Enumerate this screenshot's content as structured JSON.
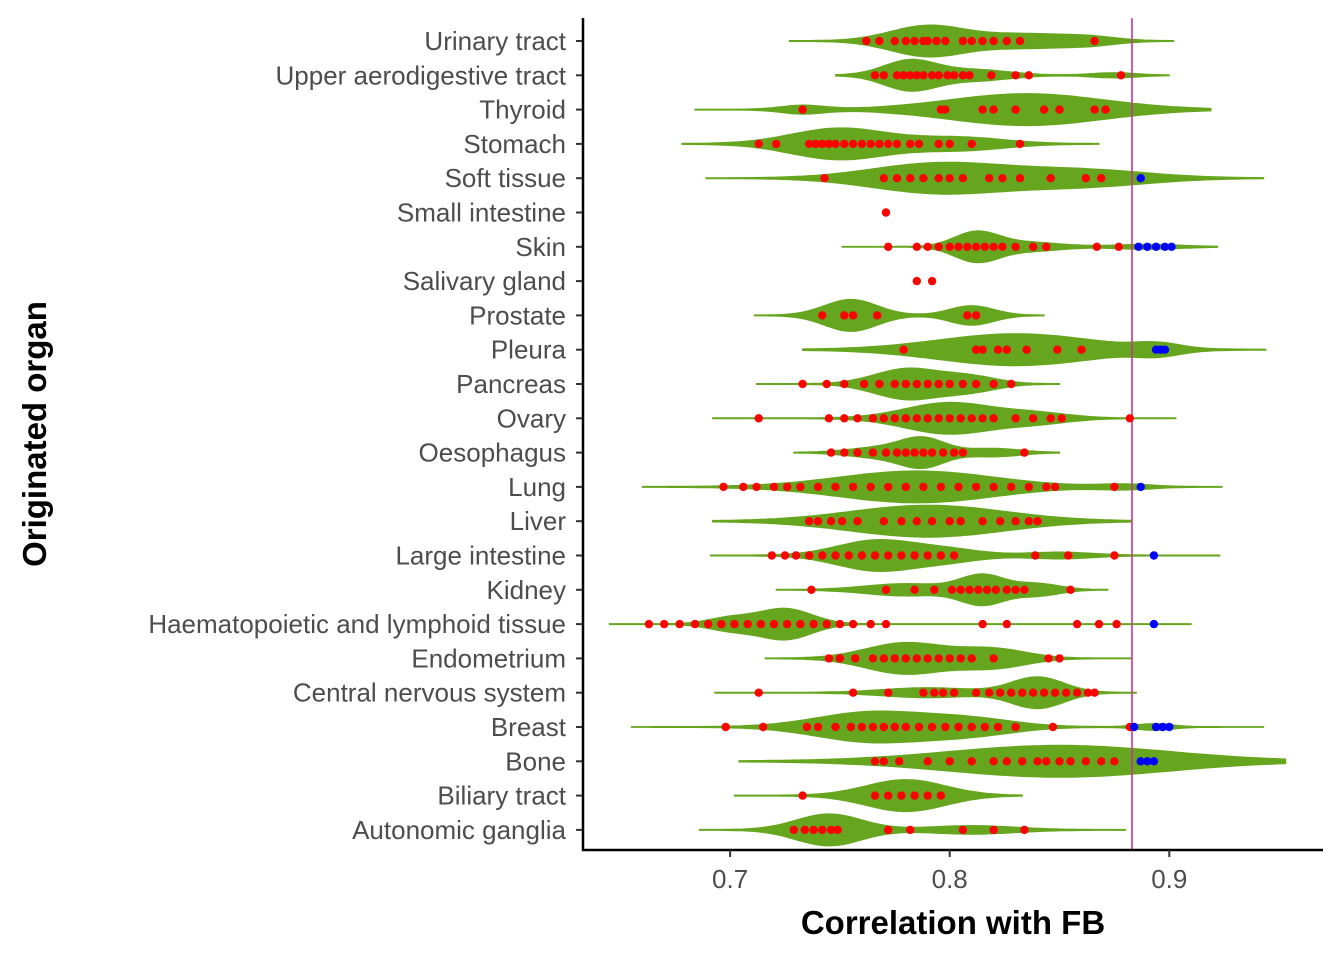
{
  "chart_data": {
    "type": "violin",
    "title": "",
    "xlabel": "Correlation with FB",
    "ylabel": "Originated organ",
    "xlim": [
      0.633,
      0.97
    ],
    "x_ticks": [
      0.7,
      0.8,
      0.9
    ],
    "x_tick_labels": [
      "0.7",
      "0.8",
      "0.9"
    ],
    "reference_line": {
      "x": 0.883,
      "color": "#c2398f"
    },
    "colors": {
      "violin": "#66a61e",
      "below_threshold_point": "#ff0000",
      "above_threshold_point": "#0000ff"
    },
    "grid": false,
    "legend": "none",
    "categories": [
      {
        "name": "Urinary tract",
        "range": [
          0.727,
          0.902
        ],
        "peaks": [
          [
            0.79,
            0.017,
            1.0
          ],
          [
            0.835,
            0.02,
            0.45
          ],
          [
            0.865,
            0.012,
            0.2
          ]
        ],
        "points": [
          0.762,
          0.768,
          0.775,
          0.78,
          0.784,
          0.788,
          0.79,
          0.794,
          0.798,
          0.806,
          0.81,
          0.815,
          0.82,
          0.826,
          0.832,
          0.866
        ],
        "blue_points": []
      },
      {
        "name": "Upper aerodigestive tract",
        "range": [
          0.748,
          0.9
        ],
        "peaks": [
          [
            0.782,
            0.012,
            1.0
          ],
          [
            0.812,
            0.015,
            0.35
          ],
          [
            0.875,
            0.01,
            0.15
          ]
        ],
        "points": [
          0.766,
          0.77,
          0.776,
          0.779,
          0.782,
          0.785,
          0.788,
          0.792,
          0.795,
          0.799,
          0.802,
          0.806,
          0.809,
          0.819,
          0.83,
          0.836,
          0.878
        ],
        "blue_points": []
      },
      {
        "name": "Thyroid",
        "range": [
          0.684,
          0.919
        ],
        "peaks": [
          [
            0.733,
            0.01,
            0.25
          ],
          [
            0.835,
            0.035,
            1.0
          ]
        ],
        "points": [
          0.733,
          0.796,
          0.798,
          0.815,
          0.82,
          0.83,
          0.843,
          0.85,
          0.866,
          0.871
        ],
        "blue_points": []
      },
      {
        "name": "Stomach",
        "range": [
          0.678,
          0.868
        ],
        "peaks": [
          [
            0.75,
            0.022,
            1.0
          ],
          [
            0.805,
            0.02,
            0.4
          ]
        ],
        "points": [
          0.713,
          0.721,
          0.736,
          0.739,
          0.742,
          0.745,
          0.748,
          0.752,
          0.756,
          0.76,
          0.764,
          0.768,
          0.772,
          0.776,
          0.782,
          0.786,
          0.795,
          0.8,
          0.81,
          0.832
        ],
        "blue_points": []
      },
      {
        "name": "Soft tissue",
        "range": [
          0.689,
          0.943
        ],
        "peaks": [
          [
            0.795,
            0.03,
            1.0
          ],
          [
            0.86,
            0.03,
            0.55
          ]
        ],
        "points": [
          0.743,
          0.77,
          0.776,
          0.782,
          0.788,
          0.795,
          0.8,
          0.806,
          0.818,
          0.824,
          0.832,
          0.846,
          0.862,
          0.869
        ],
        "blue_points": [
          0.887
        ]
      },
      {
        "name": "Small intestine",
        "range": [
          0.77,
          0.773
        ],
        "peaks": [],
        "points": [
          0.771
        ],
        "blue_points": []
      },
      {
        "name": "Skin",
        "range": [
          0.751,
          0.922
        ],
        "peaks": [
          [
            0.812,
            0.01,
            1.0
          ],
          [
            0.835,
            0.015,
            0.3
          ],
          [
            0.89,
            0.015,
            0.15
          ]
        ],
        "points": [
          0.772,
          0.785,
          0.79,
          0.795,
          0.8,
          0.804,
          0.808,
          0.812,
          0.816,
          0.82,
          0.824,
          0.83,
          0.838,
          0.844,
          0.867,
          0.877
        ],
        "blue_points": [
          0.886,
          0.89,
          0.894,
          0.898,
          0.901
        ]
      },
      {
        "name": "Salivary gland",
        "range": [
          0.784,
          0.793
        ],
        "peaks": [],
        "points": [
          0.785,
          0.792
        ],
        "blue_points": []
      },
      {
        "name": "Prostate",
        "range": [
          0.711,
          0.843
        ],
        "peaks": [
          [
            0.755,
            0.012,
            1.0
          ],
          [
            0.81,
            0.01,
            0.6
          ]
        ],
        "points": [
          0.742,
          0.752,
          0.756,
          0.767,
          0.808,
          0.812
        ],
        "blue_points": []
      },
      {
        "name": "Pleura",
        "range": [
          0.733,
          0.944
        ],
        "peaks": [
          [
            0.83,
            0.035,
            1.0
          ],
          [
            0.895,
            0.01,
            0.3
          ]
        ],
        "points": [
          0.779,
          0.812,
          0.815,
          0.822,
          0.826,
          0.835,
          0.849,
          0.86
        ],
        "blue_points": [
          0.894,
          0.896,
          0.898
        ]
      },
      {
        "name": "Pancreas",
        "range": [
          0.712,
          0.85
        ],
        "peaks": [
          [
            0.781,
            0.015,
            1.0
          ],
          [
            0.81,
            0.012,
            0.45
          ]
        ],
        "points": [
          0.733,
          0.744,
          0.752,
          0.761,
          0.768,
          0.775,
          0.78,
          0.785,
          0.79,
          0.795,
          0.8,
          0.806,
          0.812,
          0.82,
          0.828
        ],
        "blue_points": []
      },
      {
        "name": "Ovary",
        "range": [
          0.692,
          0.903
        ],
        "peaks": [
          [
            0.8,
            0.02,
            1.0
          ],
          [
            0.84,
            0.015,
            0.3
          ]
        ],
        "points": [
          0.713,
          0.745,
          0.752,
          0.758,
          0.765,
          0.77,
          0.775,
          0.78,
          0.785,
          0.79,
          0.795,
          0.8,
          0.805,
          0.81,
          0.815,
          0.82,
          0.83,
          0.838,
          0.846,
          0.851,
          0.882
        ],
        "blue_points": []
      },
      {
        "name": "Oesophagus",
        "range": [
          0.729,
          0.85
        ],
        "peaks": [
          [
            0.788,
            0.01,
            1.0
          ],
          [
            0.77,
            0.015,
            0.4
          ],
          [
            0.82,
            0.012,
            0.3
          ]
        ],
        "points": [
          0.746,
          0.752,
          0.758,
          0.765,
          0.771,
          0.776,
          0.78,
          0.784,
          0.788,
          0.792,
          0.797,
          0.802,
          0.806,
          0.834
        ],
        "blue_points": []
      },
      {
        "name": "Lung",
        "range": [
          0.66,
          0.924
        ],
        "peaks": [
          [
            0.785,
            0.035,
            1.0
          ],
          [
            0.88,
            0.012,
            0.15
          ]
        ],
        "points": [
          0.697,
          0.706,
          0.712,
          0.72,
          0.726,
          0.732,
          0.74,
          0.748,
          0.756,
          0.764,
          0.772,
          0.78,
          0.788,
          0.796,
          0.804,
          0.812,
          0.82,
          0.828,
          0.836,
          0.844,
          0.848,
          0.875
        ],
        "blue_points": [
          0.887
        ]
      },
      {
        "name": "Liver",
        "range": [
          0.692,
          0.883
        ],
        "peaks": [
          [
            0.79,
            0.035,
            1.0
          ]
        ],
        "points": [
          0.736,
          0.74,
          0.746,
          0.751,
          0.758,
          0.77,
          0.778,
          0.785,
          0.792,
          0.8,
          0.805,
          0.815,
          0.823,
          0.83,
          0.836,
          0.84
        ],
        "blue_points": []
      },
      {
        "name": "Large intestine",
        "range": [
          0.691,
          0.923
        ],
        "peaks": [
          [
            0.767,
            0.018,
            1.0
          ],
          [
            0.8,
            0.015,
            0.35
          ],
          [
            0.85,
            0.015,
            0.2
          ]
        ],
        "points": [
          0.719,
          0.725,
          0.73,
          0.736,
          0.742,
          0.748,
          0.754,
          0.76,
          0.766,
          0.772,
          0.778,
          0.784,
          0.79,
          0.796,
          0.802,
          0.839,
          0.854,
          0.875
        ],
        "blue_points": [
          0.893
        ]
      },
      {
        "name": "Kidney",
        "range": [
          0.721,
          0.872
        ],
        "peaks": [
          [
            0.815,
            0.01,
            1.0
          ],
          [
            0.78,
            0.018,
            0.4
          ],
          [
            0.84,
            0.01,
            0.4
          ]
        ],
        "points": [
          0.737,
          0.771,
          0.784,
          0.793,
          0.801,
          0.805,
          0.809,
          0.813,
          0.817,
          0.821,
          0.826,
          0.83,
          0.834,
          0.855
        ],
        "blue_points": []
      },
      {
        "name": "Haematopoietic and lymphoid tissue",
        "range": [
          0.645,
          0.91
        ],
        "peaks": [
          [
            0.725,
            0.012,
            1.0
          ],
          [
            0.7,
            0.01,
            0.4
          ]
        ],
        "points": [
          0.663,
          0.67,
          0.677,
          0.684,
          0.69,
          0.696,
          0.702,
          0.708,
          0.714,
          0.72,
          0.726,
          0.732,
          0.738,
          0.744,
          0.75,
          0.756,
          0.764,
          0.771,
          0.815,
          0.826,
          0.858,
          0.868,
          0.876
        ],
        "blue_points": [
          0.893
        ]
      },
      {
        "name": "Endometrium",
        "range": [
          0.716,
          0.883
        ],
        "peaks": [
          [
            0.78,
            0.018,
            1.0
          ],
          [
            0.82,
            0.015,
            0.6
          ]
        ],
        "points": [
          0.745,
          0.75,
          0.757,
          0.765,
          0.77,
          0.775,
          0.78,
          0.785,
          0.79,
          0.795,
          0.8,
          0.805,
          0.81,
          0.82,
          0.845,
          0.85
        ],
        "blue_points": []
      },
      {
        "name": "Central nervous system",
        "range": [
          0.693,
          0.885
        ],
        "peaks": [
          [
            0.84,
            0.012,
            1.0
          ],
          [
            0.79,
            0.02,
            0.3
          ]
        ],
        "points": [
          0.713,
          0.756,
          0.772,
          0.788,
          0.793,
          0.797,
          0.802,
          0.812,
          0.818,
          0.823,
          0.828,
          0.833,
          0.838,
          0.843,
          0.848,
          0.853,
          0.858,
          0.863,
          0.866
        ],
        "blue_points": []
      },
      {
        "name": "Breast",
        "range": [
          0.655,
          0.943
        ],
        "peaks": [
          [
            0.765,
            0.025,
            1.0
          ],
          [
            0.81,
            0.02,
            0.5
          ],
          [
            0.893,
            0.008,
            0.2
          ]
        ],
        "points": [
          0.698,
          0.715,
          0.735,
          0.74,
          0.748,
          0.755,
          0.76,
          0.765,
          0.77,
          0.775,
          0.78,
          0.786,
          0.792,
          0.798,
          0.804,
          0.81,
          0.816,
          0.822,
          0.83,
          0.847,
          0.882
        ],
        "blue_points": [
          0.884,
          0.894,
          0.897,
          0.9
        ]
      },
      {
        "name": "Bone",
        "range": [
          0.704,
          0.953
        ],
        "peaks": [
          [
            0.85,
            0.05,
            1.0
          ]
        ],
        "points": [
          0.766,
          0.77,
          0.777,
          0.79,
          0.8,
          0.81,
          0.82,
          0.826,
          0.833,
          0.84,
          0.844,
          0.85,
          0.855,
          0.862,
          0.869,
          0.875
        ],
        "blue_points": [
          0.887,
          0.89,
          0.893
        ]
      },
      {
        "name": "Biliary tract",
        "range": [
          0.702,
          0.833
        ],
        "peaks": [
          [
            0.78,
            0.018,
            1.0
          ]
        ],
        "points": [
          0.733,
          0.766,
          0.772,
          0.778,
          0.784,
          0.79,
          0.796
        ],
        "blue_points": []
      },
      {
        "name": "Autonomic ganglia",
        "range": [
          0.686,
          0.88
        ],
        "peaks": [
          [
            0.745,
            0.015,
            1.0
          ],
          [
            0.81,
            0.02,
            0.25
          ]
        ],
        "points": [
          0.729,
          0.734,
          0.738,
          0.742,
          0.746,
          0.749,
          0.772,
          0.782,
          0.806,
          0.82,
          0.834
        ],
        "blue_points": []
      }
    ]
  }
}
